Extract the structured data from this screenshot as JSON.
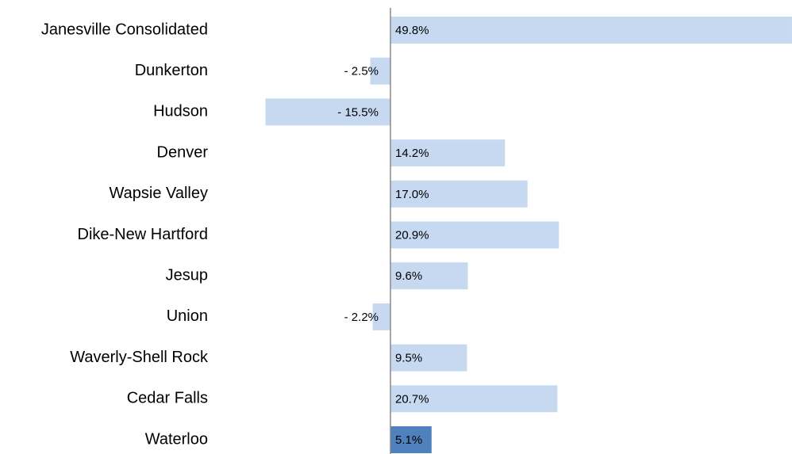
{
  "chart_data": {
    "type": "bar",
    "orientation": "horizontal",
    "categories": [
      "Janesville Consolidated",
      "Dunkerton",
      "Hudson",
      "Denver",
      "Wapsie Valley",
      "Dike-New Hartford",
      "Jesup",
      "Union",
      "Waverly-Shell Rock",
      "Cedar Falls",
      "Waterloo"
    ],
    "values": [
      49.8,
      -2.5,
      -15.5,
      14.2,
      17.0,
      20.9,
      9.6,
      -2.2,
      9.5,
      20.7,
      5.1
    ],
    "value_labels": [
      "49.8%",
      "- 2.5%",
      "- 15.5%",
      "14.2%",
      "17.0%",
      "20.9%",
      "9.6%",
      "- 2.2%",
      "9.5%",
      "20.7%",
      "5.1%"
    ],
    "colors": [
      "#c6d9f1",
      "#c6d9f1",
      "#c6d9f1",
      "#c6d9f1",
      "#c6d9f1",
      "#c6d9f1",
      "#c6d9f1",
      "#c6d9f1",
      "#c6d9f1",
      "#c6d9f1",
      "#4f81bd"
    ]
  }
}
